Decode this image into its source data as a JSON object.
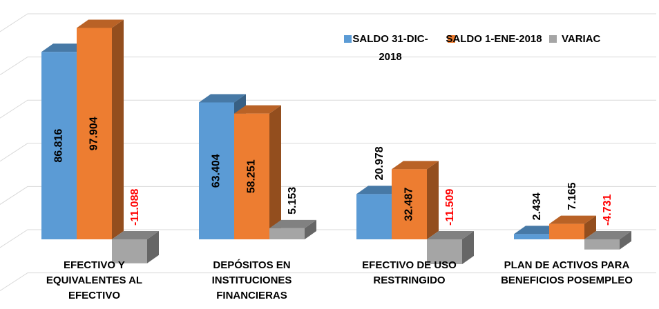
{
  "chart_data": {
    "type": "bar3d",
    "categories": [
      "EFECTIVO Y EQUIVALENTES AL EFECTIVO",
      "DEPÓSITOS EN INSTITUCIONES FINANCIERAS",
      "EFECTIVO DE USO RESTRINGIDO",
      "PLAN DE ACTIVOS PARA BENEFICIOS POSEMPLEO"
    ],
    "series": [
      {
        "name": "SALDO 31-DIC-2018",
        "color": "#5b9bd5",
        "values": [
          86.816,
          63.404,
          20.978,
          2.434
        ]
      },
      {
        "name": "SALDO 1-ENE-2018",
        "color": "#ed7d31",
        "values": [
          97.904,
          58.251,
          32.487,
          7.165
        ]
      },
      {
        "name": "VARIAC",
        "color": "#a5a5a5",
        "values": [
          -11.088,
          5.153,
          -11.509,
          -4.731
        ]
      }
    ],
    "ylim": [
      -30,
      105
    ],
    "yticks": [
      -20,
      0,
      20,
      40,
      60,
      80,
      100
    ],
    "grid": true,
    "legend": "top-right",
    "negative_label_color": "#ff0000"
  }
}
